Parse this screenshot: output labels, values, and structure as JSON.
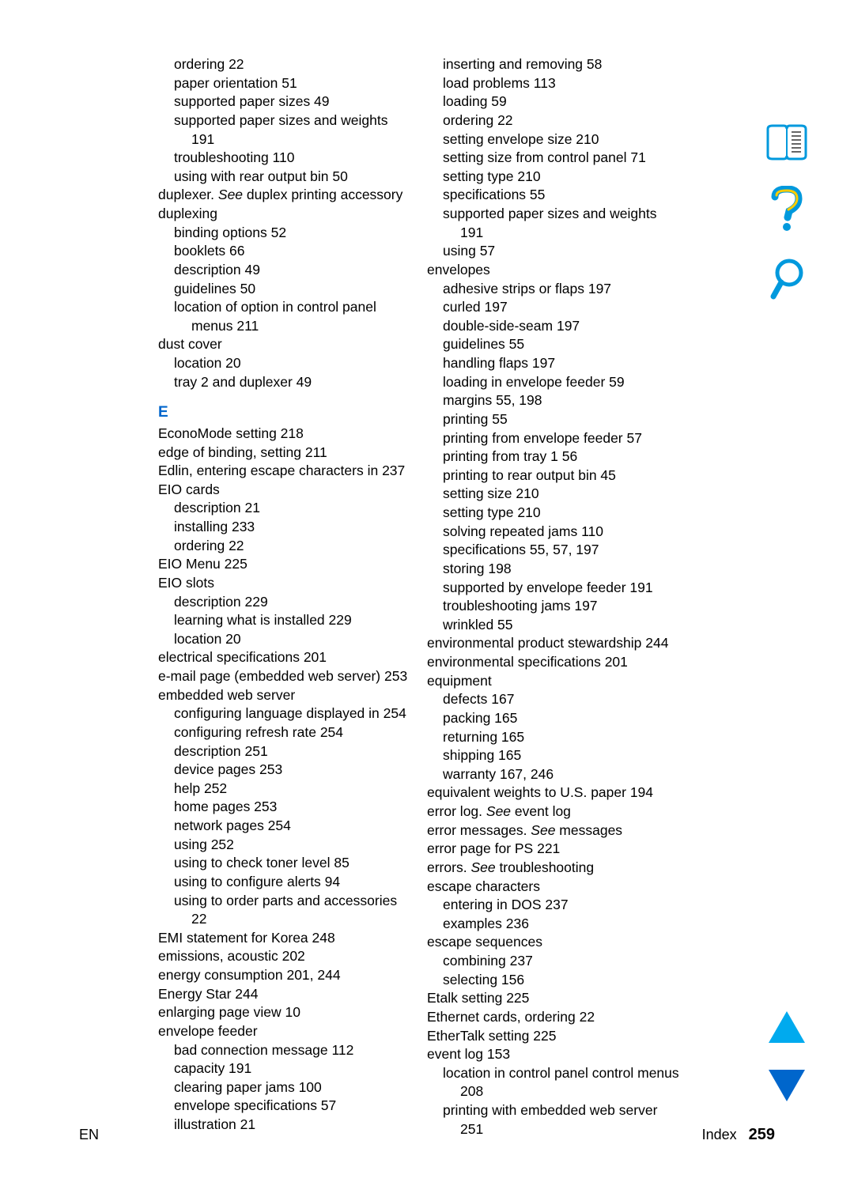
{
  "colors": {
    "text": "#000000",
    "accent": "#0066cc",
    "icon_stroke": "#0099dd",
    "icon_fill_yellow": "#ffcc00",
    "arrow_up": "#00aaee",
    "arrow_down": "#0066cc",
    "background": "#ffffff"
  },
  "typography": {
    "body_fontsize": 17.5,
    "letter_fontsize": 19,
    "footer_fontsize": 18,
    "pagenum_fontsize": 20,
    "line_height": 1.35
  },
  "footer": {
    "left": "EN",
    "right_label": "Index",
    "page": "259"
  },
  "section_letter": "E",
  "entries": [
    {
      "lvl": 1,
      "t": "ordering  22"
    },
    {
      "lvl": 1,
      "t": "paper orientation  51"
    },
    {
      "lvl": 1,
      "t": "supported paper sizes  49"
    },
    {
      "lvl": 1,
      "t": "supported paper sizes and weights  191"
    },
    {
      "lvl": 1,
      "t": "troubleshooting  110"
    },
    {
      "lvl": 1,
      "t": "using with rear output bin  50"
    },
    {
      "lvl": 0,
      "html": "duplexer. <span class=\"italic\">See</span> duplex printing accessory"
    },
    {
      "lvl": 0,
      "t": "duplexing"
    },
    {
      "lvl": 1,
      "t": "binding options  52"
    },
    {
      "lvl": 1,
      "t": "booklets  66"
    },
    {
      "lvl": 1,
      "t": "description  49"
    },
    {
      "lvl": 1,
      "t": "guidelines  50"
    },
    {
      "lvl": 1,
      "t": "location of option in control panel menus  211"
    },
    {
      "lvl": 0,
      "t": "dust cover"
    },
    {
      "lvl": 1,
      "t": "location  20"
    },
    {
      "lvl": 1,
      "t": "tray 2 and duplexer  49"
    },
    {
      "letter": true
    },
    {
      "lvl": 0,
      "t": "EconoMode setting  218"
    },
    {
      "lvl": 0,
      "t": "edge of binding, setting  211"
    },
    {
      "lvl": 0,
      "t": "Edlin, entering escape characters in  237"
    },
    {
      "lvl": 0,
      "t": "EIO cards"
    },
    {
      "lvl": 1,
      "t": "description  21"
    },
    {
      "lvl": 1,
      "t": "installing  233"
    },
    {
      "lvl": 1,
      "t": "ordering  22"
    },
    {
      "lvl": 0,
      "t": "EIO Menu  225"
    },
    {
      "lvl": 0,
      "t": "EIO slots"
    },
    {
      "lvl": 1,
      "t": "description  229"
    },
    {
      "lvl": 1,
      "t": "learning what is installed  229"
    },
    {
      "lvl": 1,
      "t": "location  20"
    },
    {
      "lvl": 0,
      "t": "electrical specifications  201"
    },
    {
      "lvl": 0,
      "t": "e-mail page (embedded web server)  253"
    },
    {
      "lvl": 0,
      "t": "embedded web server"
    },
    {
      "lvl": 1,
      "t": "configuring language displayed in  254"
    },
    {
      "lvl": 1,
      "t": "configuring refresh rate  254"
    },
    {
      "lvl": 1,
      "t": "description  251"
    },
    {
      "lvl": 1,
      "t": "device pages  253"
    },
    {
      "lvl": 1,
      "t": "help  252"
    },
    {
      "lvl": 1,
      "t": "home pages  253"
    },
    {
      "lvl": 1,
      "t": "network pages  254"
    },
    {
      "lvl": 1,
      "t": "using  252"
    },
    {
      "lvl": 1,
      "t": "using to check toner level  85"
    },
    {
      "lvl": 1,
      "t": "using to configure alerts  94"
    },
    {
      "lvl": 1,
      "t": "using to order parts and accessories  22"
    },
    {
      "lvl": 0,
      "t": "EMI statement for Korea  248"
    },
    {
      "lvl": 0,
      "t": "emissions, acoustic  202"
    },
    {
      "lvl": 0,
      "t": "energy consumption  201,  244"
    },
    {
      "lvl": 0,
      "t": "Energy Star  244"
    },
    {
      "lvl": 0,
      "t": "enlarging page view  10"
    },
    {
      "lvl": 0,
      "t": "envelope feeder"
    },
    {
      "lvl": 1,
      "t": "bad connection message  112"
    },
    {
      "lvl": 1,
      "t": "capacity  191"
    },
    {
      "lvl": 1,
      "t": "clearing paper jams  100"
    },
    {
      "lvl": 1,
      "t": "envelope specifications  57"
    },
    {
      "lvl": 1,
      "t": "illustration  21"
    },
    {
      "lvl": 1,
      "t": "inserting and removing  58"
    },
    {
      "lvl": 1,
      "t": "load problems  113"
    },
    {
      "lvl": 1,
      "t": "loading  59"
    },
    {
      "lvl": 1,
      "t": "ordering  22"
    },
    {
      "lvl": 1,
      "t": "setting envelope size  210"
    },
    {
      "lvl": 1,
      "t": "setting size from control panel  71"
    },
    {
      "lvl": 1,
      "t": "setting type  210"
    },
    {
      "lvl": 1,
      "t": "specifications  55"
    },
    {
      "lvl": 1,
      "t": "supported paper sizes and weights  191"
    },
    {
      "lvl": 1,
      "t": "using  57"
    },
    {
      "lvl": 0,
      "t": "envelopes"
    },
    {
      "lvl": 1,
      "t": "adhesive strips or flaps  197"
    },
    {
      "lvl": 1,
      "t": "curled  197"
    },
    {
      "lvl": 1,
      "t": "double-side-seam  197"
    },
    {
      "lvl": 1,
      "t": "guidelines  55"
    },
    {
      "lvl": 1,
      "t": "handling flaps  197"
    },
    {
      "lvl": 1,
      "t": "loading in envelope feeder  59"
    },
    {
      "lvl": 1,
      "t": "margins  55,  198"
    },
    {
      "lvl": 1,
      "t": "printing  55"
    },
    {
      "lvl": 1,
      "t": "printing from envelope feeder  57"
    },
    {
      "lvl": 1,
      "t": "printing from tray 1  56"
    },
    {
      "lvl": 1,
      "t": "printing to rear output bin  45"
    },
    {
      "lvl": 1,
      "t": "setting size  210"
    },
    {
      "lvl": 1,
      "t": "setting type  210"
    },
    {
      "lvl": 1,
      "t": "solving repeated jams  110"
    },
    {
      "lvl": 1,
      "t": "specifications  55,  57,  197"
    },
    {
      "lvl": 1,
      "t": "storing  198"
    },
    {
      "lvl": 1,
      "t": "supported by envelope feeder  191"
    },
    {
      "lvl": 1,
      "t": "troubleshooting jams  197"
    },
    {
      "lvl": 1,
      "t": "wrinkled  55"
    },
    {
      "lvl": 0,
      "t": "environmental product stewardship  244"
    },
    {
      "lvl": 0,
      "t": "environmental specifications  201"
    },
    {
      "lvl": 0,
      "t": "equipment"
    },
    {
      "lvl": 1,
      "t": "defects  167"
    },
    {
      "lvl": 1,
      "t": "packing  165"
    },
    {
      "lvl": 1,
      "t": "returning  165"
    },
    {
      "lvl": 1,
      "t": "shipping  165"
    },
    {
      "lvl": 1,
      "t": "warranty  167,  246"
    },
    {
      "lvl": 0,
      "t": "equivalent weights to U.S. paper  194"
    },
    {
      "lvl": 0,
      "html": "error log. <span class=\"italic\">See</span> event log"
    },
    {
      "lvl": 0,
      "html": "error messages. <span class=\"italic\">See</span> messages"
    },
    {
      "lvl": 0,
      "t": "error page for PS  221"
    },
    {
      "lvl": 0,
      "html": "errors. <span class=\"italic\">See</span>  troubleshooting"
    },
    {
      "lvl": 0,
      "t": "escape characters"
    },
    {
      "lvl": 1,
      "t": "entering in DOS  237"
    },
    {
      "lvl": 1,
      "t": "examples  236"
    },
    {
      "lvl": 0,
      "t": "escape sequences"
    },
    {
      "lvl": 1,
      "t": "combining  237"
    },
    {
      "lvl": 1,
      "t": "selecting  156"
    },
    {
      "lvl": 0,
      "t": "Etalk setting  225"
    },
    {
      "lvl": 0,
      "t": "Ethernet cards, ordering  22"
    },
    {
      "lvl": 0,
      "t": "EtherTalk setting  225"
    },
    {
      "lvl": 0,
      "t": "event log  153"
    },
    {
      "lvl": 1,
      "t": "location in control panel control menus  208"
    },
    {
      "lvl": 1,
      "t": "printing with embedded web server  251"
    }
  ]
}
